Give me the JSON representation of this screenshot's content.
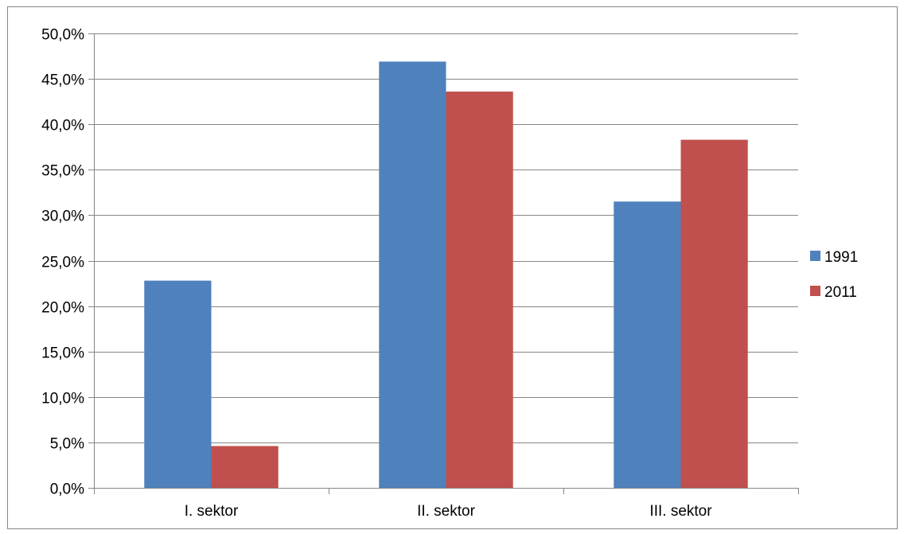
{
  "chart_data": {
    "type": "bar",
    "categories": [
      "I. sektor",
      "II. sektor",
      "III. sektor"
    ],
    "series": [
      {
        "name": "1991",
        "color": "#4F81BD",
        "values": [
          22.8,
          46.9,
          31.5
        ]
      },
      {
        "name": "2011",
        "color": "#C0504D",
        "values": [
          4.6,
          43.6,
          38.3
        ]
      }
    ],
    "y_ticks": [
      "0,0%",
      "5,0%",
      "10,0%",
      "15,0%",
      "20,0%",
      "25,0%",
      "30,0%",
      "35,0%",
      "40,0%",
      "45,0%",
      "50,0%"
    ],
    "ylim": [
      0,
      50
    ],
    "y_step": 5,
    "grid": true,
    "legend_position": "right"
  }
}
